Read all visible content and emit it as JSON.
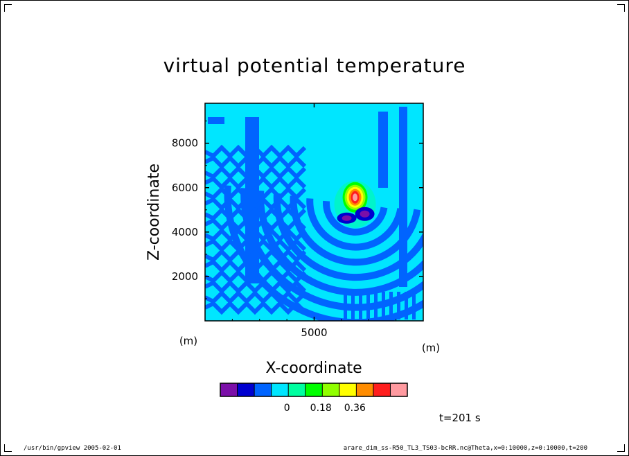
{
  "chart_data": {
    "type": "heatmap",
    "title": "virtual potential temperature",
    "xlabel": "X-coordinate",
    "ylabel": "Z-coordinate",
    "x_unit": "(m)",
    "y_unit": "(m)",
    "xlim": [
      1000,
      9000
    ],
    "ylim": [
      0,
      9800
    ],
    "x_ticks": [
      5000
    ],
    "y_ticks": [
      2000,
      4000,
      6000,
      8000
    ],
    "legend": {
      "placement": "bottom",
      "colors": [
        "#7b0fa8",
        "#0000d0",
        "#0064ff",
        "#00e6ff",
        "#00ffa0",
        "#00ff00",
        "#90ff00",
        "#ffff00",
        "#ff8c00",
        "#ff1e1e",
        "#ff9aa0"
      ],
      "labels": [
        {
          "text": "0",
          "boundary": 4
        },
        {
          "text": "0.18",
          "boundary": 6
        },
        {
          "text": "0.36",
          "boundary": 8
        }
      ]
    },
    "thermal": {
      "center_x": 6500,
      "center_z": 5500,
      "peak_label": "0.36+"
    },
    "background_colors": {
      "near_zero": "#00e6ff",
      "band": "#0064ff",
      "slight_positive": "#00ffa0"
    }
  },
  "time_label": "t=201 s",
  "footer": {
    "left": "/usr/bin/gpview  2005-02-01",
    "right": "arare_dim_ss-R50_TL3_TS03-bcRR.nc@Theta,x=0:10000,z=0:10000,t=200"
  }
}
